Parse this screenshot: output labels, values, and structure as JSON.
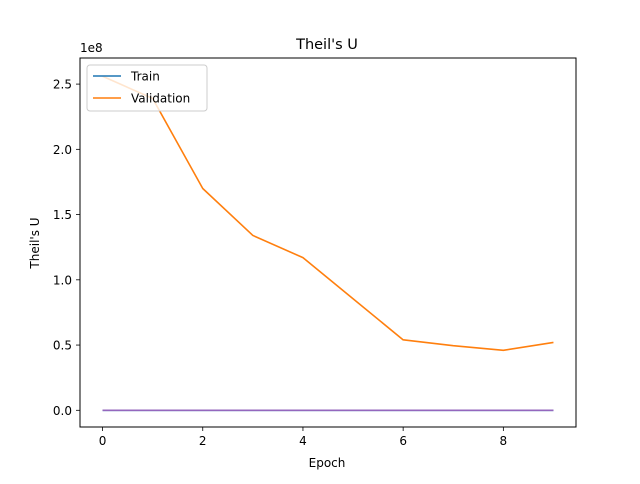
{
  "chart_data": {
    "type": "line",
    "title": "Theil's U",
    "xlabel": "Epoch",
    "ylabel": "Theil's U",
    "offset_label": "1e8",
    "x": [
      0,
      1,
      2,
      3,
      4,
      5,
      6,
      7,
      8,
      9
    ],
    "xlim": [
      -0.45,
      9.45
    ],
    "ylim": [
      -12800000,
      270000000
    ],
    "xticks": [
      0,
      2,
      4,
      6,
      8
    ],
    "xtick_labels": [
      "0",
      "2",
      "4",
      "6",
      "8"
    ],
    "yticks": [
      0,
      50000000,
      100000000,
      150000000,
      200000000,
      250000000
    ],
    "ytick_labels": [
      "0.0",
      "0.5",
      "1.0",
      "1.5",
      "2.0",
      "2.5"
    ],
    "grid": false,
    "legend_position": "upper-left",
    "series": [
      {
        "name": "Train",
        "color": "#1f77b4",
        "values": [
          0,
          0,
          0,
          0,
          0,
          0,
          0,
          0,
          0,
          0
        ]
      },
      {
        "name": "Validation",
        "color": "#ff7f0e",
        "values": [
          256000000,
          239000000,
          170000000,
          134000000,
          117000000,
          85500000,
          54000000,
          49500000,
          46000000,
          52000000
        ]
      },
      {
        "name": "",
        "color": "#9467bd",
        "values": [
          0,
          0,
          0,
          0,
          0,
          0,
          0,
          0,
          0,
          0
        ]
      }
    ]
  }
}
